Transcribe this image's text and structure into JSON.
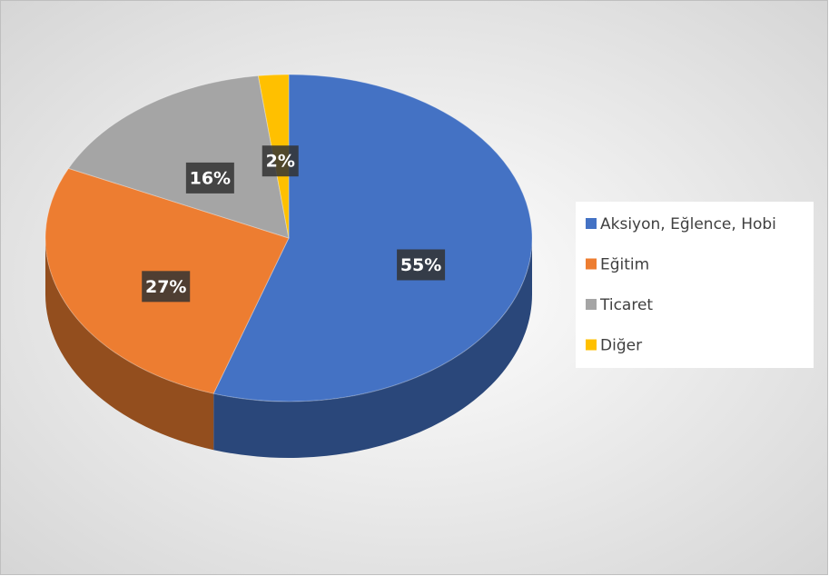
{
  "chart_data": {
    "type": "pie",
    "categories": [
      "Aksiyon, Eğlence, Hobi",
      "Eğitim",
      "Ticaret",
      "Diğer"
    ],
    "values": [
      55,
      27,
      16,
      2
    ],
    "value_labels": [
      "55%",
      "27%",
      "16%",
      "2%"
    ],
    "colors": [
      "#4472c4",
      "#ed7d31",
      "#a5a5a5",
      "#ffc000"
    ],
    "legend": "right"
  }
}
